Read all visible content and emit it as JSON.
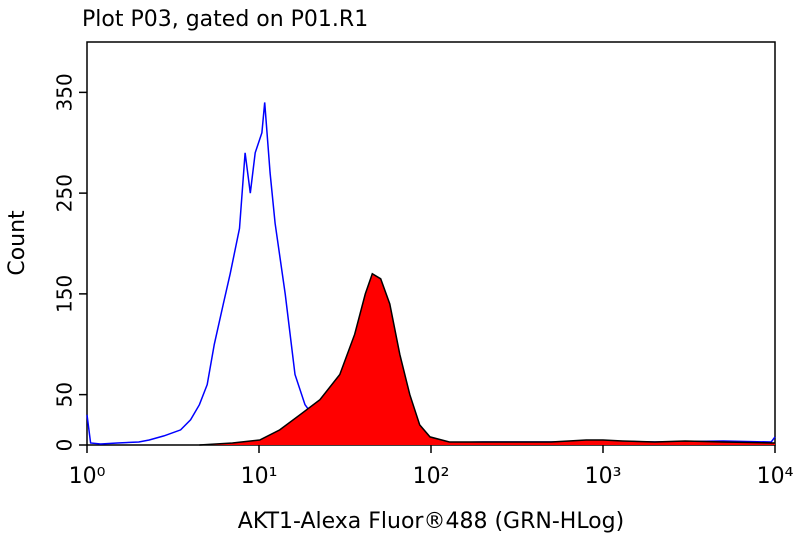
{
  "chart_data": {
    "type": "histogram-overlay",
    "title": "Plot P03, gated on P01.R1",
    "xlabel": "AKT1-Alexa Fluor®488 (GRN-HLog)",
    "ylabel": "Count",
    "xscale": "log",
    "xlim": [
      1,
      10000
    ],
    "xticks": [
      {
        "value": 1,
        "label": "10⁰"
      },
      {
        "value": 10,
        "label": "10¹"
      },
      {
        "value": 100,
        "label": "10²"
      },
      {
        "value": 1000,
        "label": "10³"
      },
      {
        "value": 10000,
        "label": "10⁴"
      }
    ],
    "ylim": [
      0,
      400
    ],
    "yticks": [
      0,
      50,
      150,
      250,
      350
    ],
    "series": [
      {
        "color": "#0000ff",
        "fill": "none",
        "x": [
          1,
          1.05,
          1.2,
          1.5,
          2,
          2.3,
          2.8,
          3.5,
          4,
          4.5,
          5,
          5.5,
          6.2,
          6.8,
          7.7,
          8.3,
          8.9,
          9.5,
          10.4,
          10.8,
          11.6,
          12.4,
          14.2,
          16.2,
          18.5,
          22.6,
          29.5,
          44,
          70,
          100,
          200,
          500,
          1000,
          2000,
          5000,
          9500,
          10000
        ],
        "values": [
          30,
          2,
          1,
          2,
          3,
          5,
          9,
          15,
          25,
          40,
          60,
          100,
          140,
          170,
          215,
          290,
          250,
          290,
          310,
          340,
          270,
          220,
          150,
          70,
          40,
          20,
          10,
          5,
          3,
          2,
          3,
          3,
          4,
          3,
          4,
          3,
          8
        ]
      },
      {
        "color": "#000000",
        "fill": "#ff0000",
        "x": [
          4.5,
          7,
          10.1,
          13.2,
          17.3,
          22.6,
          29.5,
          36,
          41.5,
          45.6,
          51,
          57.6,
          65.9,
          75.3,
          86,
          98.7,
          128,
          200,
          500,
          800,
          1000,
          1300,
          2000,
          3000,
          5000,
          10000
        ],
        "values": [
          0,
          2,
          5,
          15,
          30,
          45,
          70,
          110,
          150,
          170,
          165,
          140,
          90,
          50,
          20,
          8,
          3,
          3,
          3,
          5,
          5,
          4,
          3,
          4,
          3,
          2
        ]
      }
    ]
  }
}
